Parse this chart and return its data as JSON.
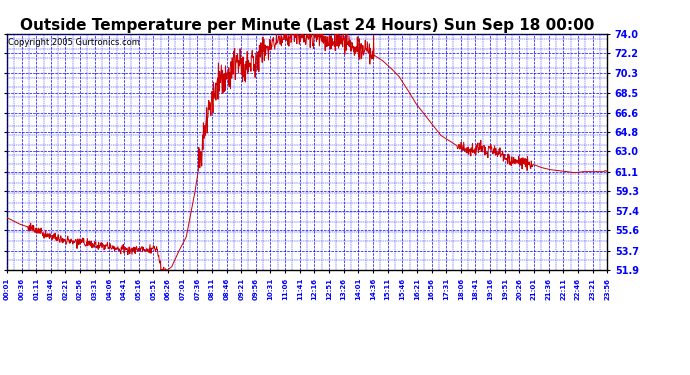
{
  "title": "Outside Temperature per Minute (Last 24 Hours) Sun Sep 18 00:00",
  "copyright": "Copyright 2005 Gurtronics.com",
  "yticks": [
    51.9,
    53.7,
    55.6,
    57.4,
    59.3,
    61.1,
    63.0,
    64.8,
    66.6,
    68.5,
    70.3,
    72.2,
    74.0
  ],
  "ymin": 51.9,
  "ymax": 74.0,
  "background_color": "#ffffff",
  "plot_bg_color": "#ffffff",
  "grid_color": "#0000ff",
  "line_color": "#cc0000",
  "title_fontsize": 11,
  "copyright_fontsize": 6,
  "xtick_labels": [
    "00:01",
    "00:36",
    "01:11",
    "01:46",
    "02:21",
    "02:56",
    "03:31",
    "04:06",
    "04:41",
    "05:16",
    "05:51",
    "06:26",
    "07:01",
    "07:36",
    "08:11",
    "08:46",
    "09:21",
    "09:56",
    "10:31",
    "11:06",
    "11:41",
    "12:16",
    "12:51",
    "13:26",
    "14:01",
    "14:36",
    "15:11",
    "15:46",
    "16:21",
    "16:56",
    "17:31",
    "18:06",
    "18:41",
    "19:16",
    "19:51",
    "20:26",
    "21:01",
    "21:36",
    "22:11",
    "22:46",
    "23:21",
    "23:56"
  ],
  "control_points": [
    [
      0,
      56.8
    ],
    [
      30,
      56.2
    ],
    [
      60,
      55.8
    ],
    [
      90,
      55.2
    ],
    [
      120,
      54.8
    ],
    [
      150,
      54.6
    ],
    [
      180,
      54.5
    ],
    [
      210,
      54.3
    ],
    [
      240,
      54.1
    ],
    [
      270,
      53.9
    ],
    [
      300,
      53.8
    ],
    [
      330,
      53.8
    ],
    [
      360,
      53.9
    ],
    [
      370,
      52.0
    ],
    [
      385,
      51.9
    ],
    [
      395,
      52.2
    ],
    [
      410,
      53.5
    ],
    [
      430,
      55.0
    ],
    [
      440,
      57.0
    ],
    [
      450,
      59.0
    ],
    [
      460,
      61.5
    ],
    [
      470,
      64.0
    ],
    [
      480,
      66.5
    ],
    [
      490,
      68.0
    ],
    [
      500,
      69.0
    ],
    [
      510,
      69.5
    ],
    [
      520,
      70.0
    ],
    [
      530,
      70.5
    ],
    [
      540,
      71.0
    ],
    [
      560,
      71.5
    ],
    [
      570,
      70.5
    ],
    [
      580,
      71.0
    ],
    [
      590,
      71.5
    ],
    [
      600,
      72.0
    ],
    [
      620,
      72.5
    ],
    [
      640,
      73.0
    ],
    [
      660,
      73.5
    ],
    [
      680,
      74.0
    ],
    [
      700,
      73.8
    ],
    [
      720,
      73.5
    ],
    [
      740,
      73.8
    ],
    [
      760,
      73.5
    ],
    [
      780,
      73.2
    ],
    [
      800,
      73.5
    ],
    [
      820,
      73.0
    ],
    [
      840,
      72.8
    ],
    [
      860,
      72.5
    ],
    [
      880,
      72.0
    ],
    [
      900,
      71.5
    ],
    [
      920,
      70.8
    ],
    [
      940,
      70.0
    ],
    [
      960,
      68.8
    ],
    [
      980,
      67.5
    ],
    [
      1000,
      66.5
    ],
    [
      1020,
      65.5
    ],
    [
      1040,
      64.5
    ],
    [
      1060,
      64.0
    ],
    [
      1080,
      63.5
    ],
    [
      1100,
      63.2
    ],
    [
      1120,
      63.0
    ],
    [
      1130,
      63.5
    ],
    [
      1140,
      63.2
    ],
    [
      1150,
      63.0
    ],
    [
      1160,
      63.2
    ],
    [
      1170,
      63.0
    ],
    [
      1180,
      62.8
    ],
    [
      1190,
      62.5
    ],
    [
      1200,
      62.2
    ],
    [
      1210,
      62.0
    ],
    [
      1220,
      62.2
    ],
    [
      1240,
      62.0
    ],
    [
      1260,
      61.8
    ],
    [
      1280,
      61.5
    ],
    [
      1300,
      61.3
    ],
    [
      1320,
      61.2
    ],
    [
      1340,
      61.1
    ],
    [
      1360,
      61.0
    ],
    [
      1380,
      61.1
    ],
    [
      1400,
      61.1
    ],
    [
      1420,
      61.1
    ],
    [
      1430,
      61.1
    ],
    [
      1435,
      61.2
    ],
    [
      1439,
      61.1
    ]
  ]
}
